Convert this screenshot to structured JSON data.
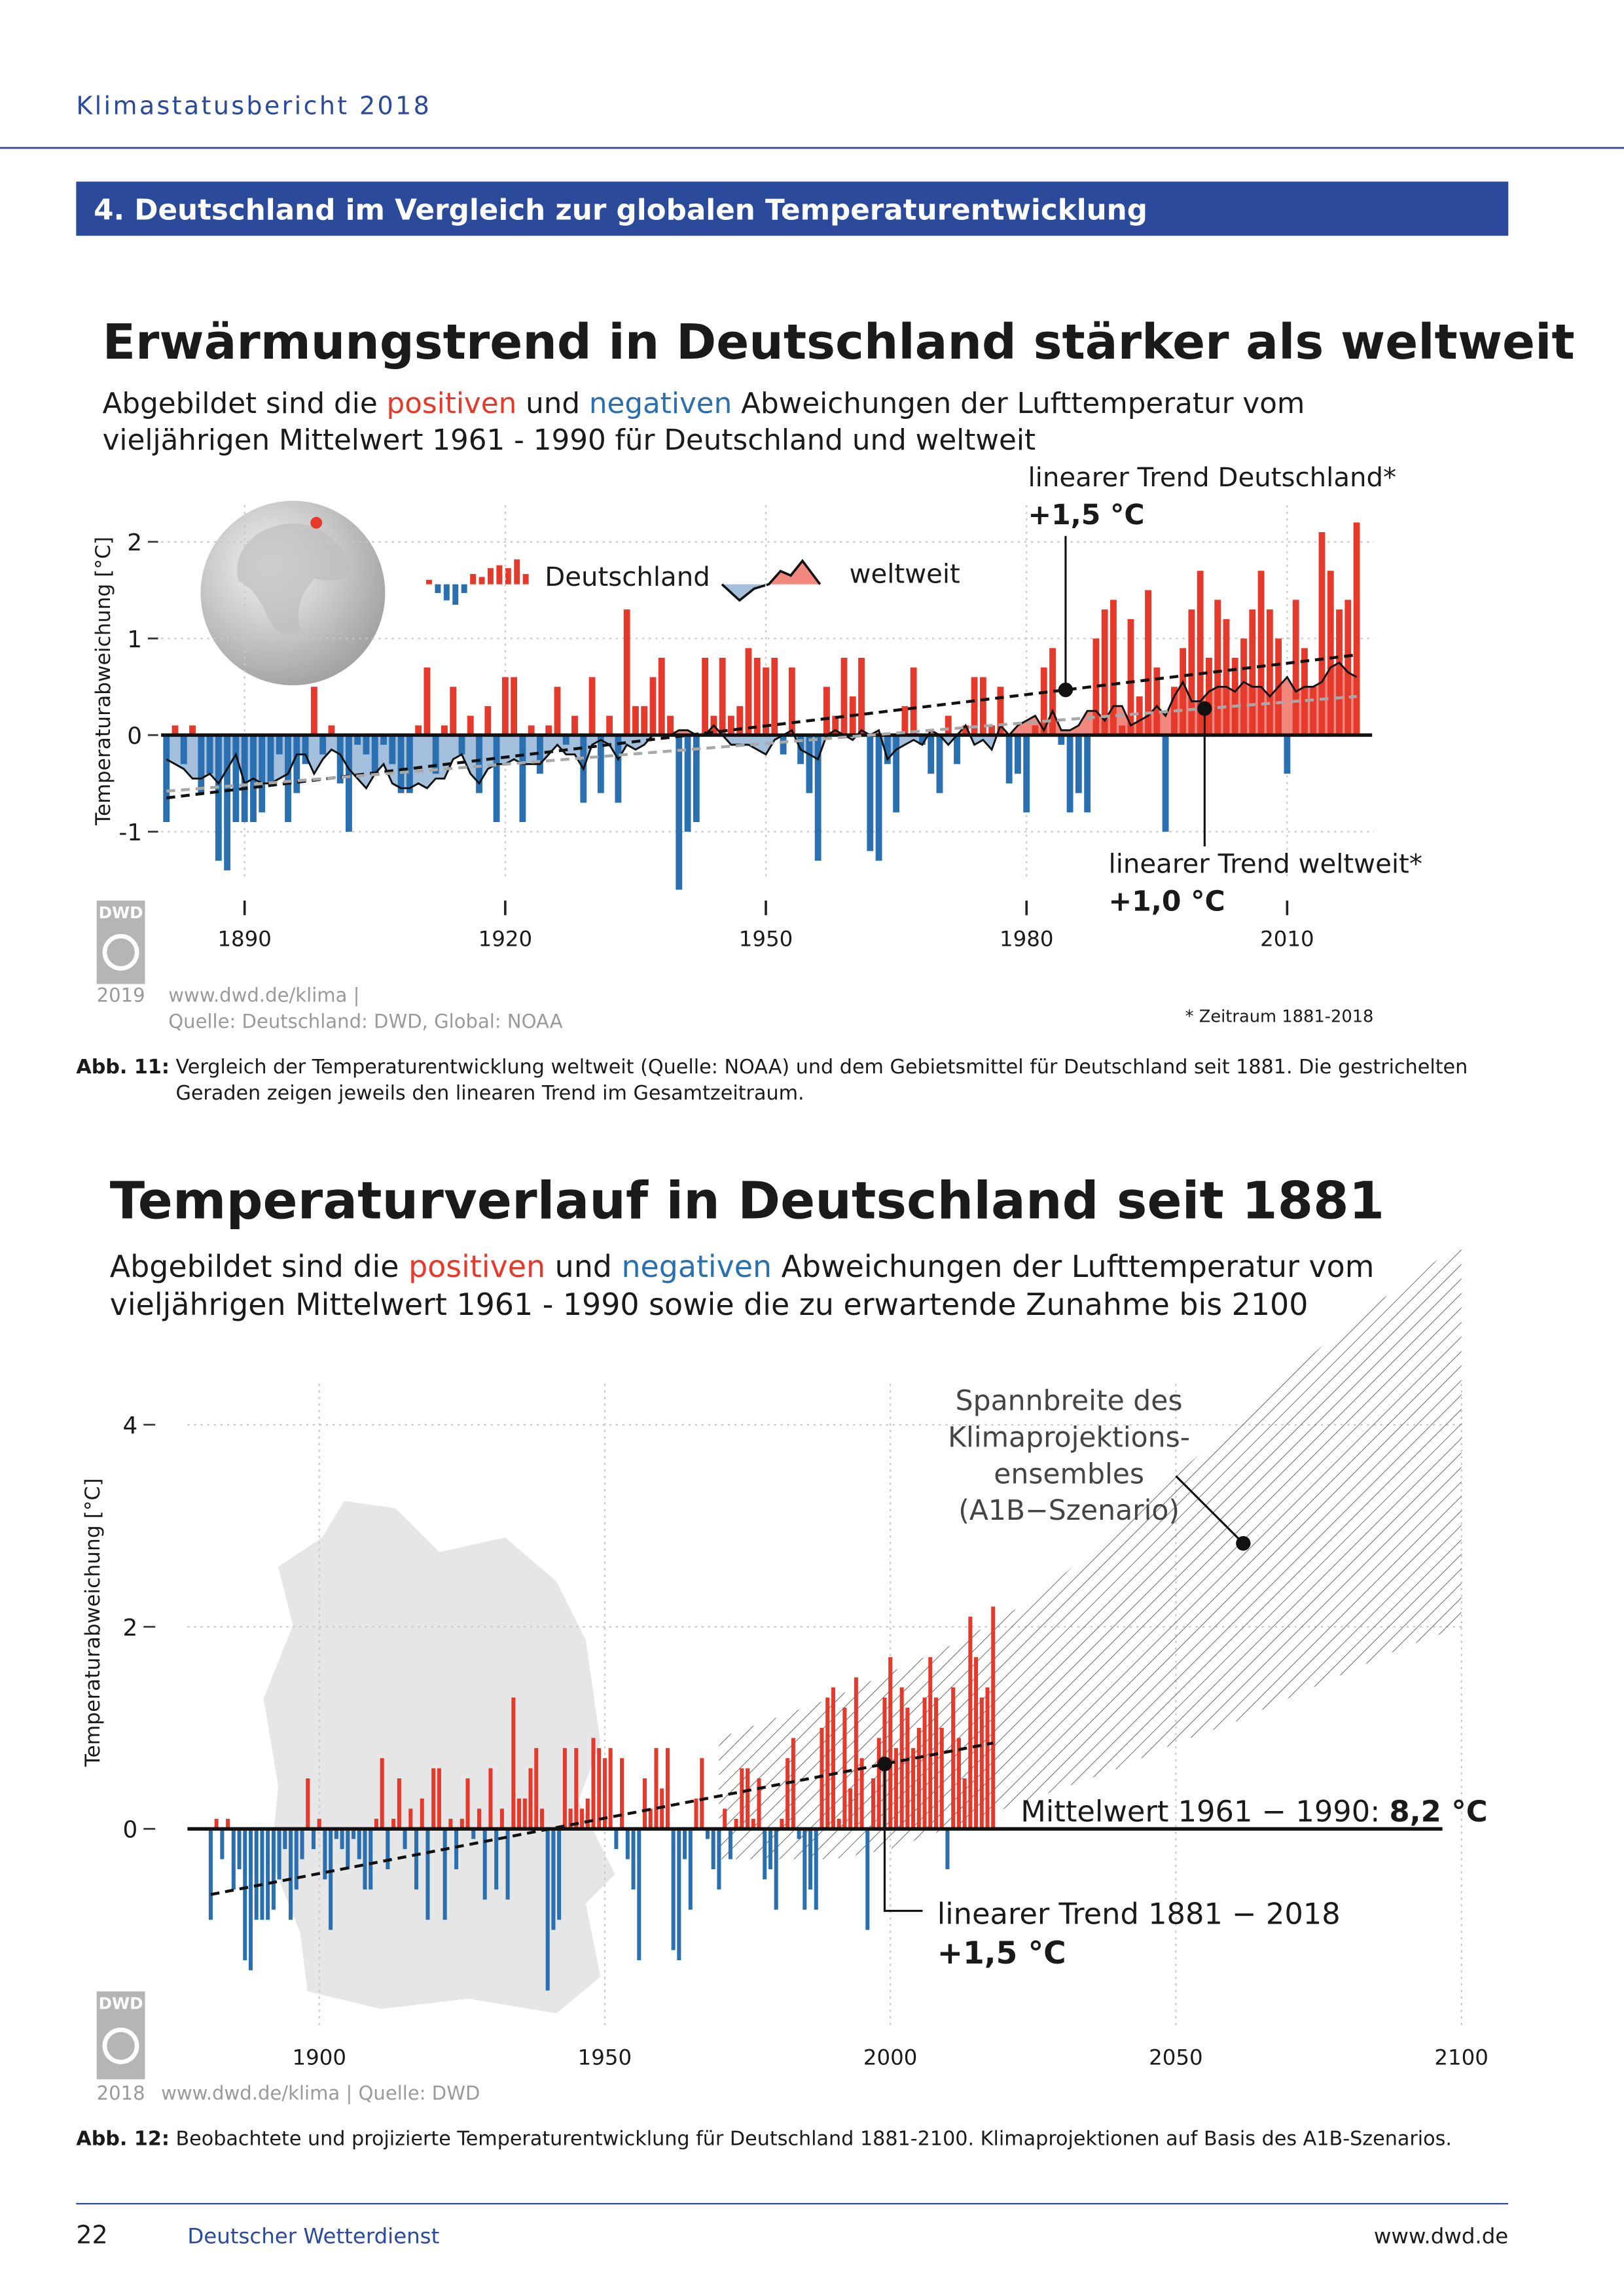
{
  "header": {
    "title": "Klimastatusbericht 2018"
  },
  "section": "4. Deutschland im Vergleich zur globalen Temperaturentwicklung",
  "chart_data": [
    {
      "type": "bar",
      "title": "Erwärmungstrend in Deutschland stärker als weltweit",
      "subtitle": [
        [
          "Abgebildet sind die ",
          "positiven",
          " und ",
          "negativen",
          " Abweichungen der Lufttemperatur vom"
        ],
        [
          "vieljährigen Mittelwert 1961 - 1990 für Deutschland und weltweit"
        ]
      ],
      "y_label": "Temperaturabweichung [°C]",
      "x": [
        1881,
        1882,
        1883,
        1884,
        1885,
        1886,
        1887,
        1888,
        1889,
        1890,
        1891,
        1892,
        1893,
        1894,
        1895,
        1896,
        1897,
        1898,
        1899,
        1900,
        1901,
        1902,
        1903,
        1904,
        1905,
        1906,
        1907,
        1908,
        1909,
        1910,
        1911,
        1912,
        1913,
        1914,
        1915,
        1916,
        1917,
        1918,
        1919,
        1920,
        1921,
        1922,
        1923,
        1924,
        1925,
        1926,
        1927,
        1928,
        1929,
        1930,
        1931,
        1932,
        1933,
        1934,
        1935,
        1936,
        1937,
        1938,
        1939,
        1940,
        1941,
        1942,
        1943,
        1944,
        1945,
        1946,
        1947,
        1948,
        1949,
        1950,
        1951,
        1952,
        1953,
        1954,
        1955,
        1956,
        1957,
        1958,
        1959,
        1960,
        1961,
        1962,
        1963,
        1964,
        1965,
        1966,
        1967,
        1968,
        1969,
        1970,
        1971,
        1972,
        1973,
        1974,
        1975,
        1976,
        1977,
        1978,
        1979,
        1980,
        1981,
        1982,
        1983,
        1984,
        1985,
        1986,
        1987,
        1988,
        1989,
        1990,
        1991,
        1992,
        1993,
        1994,
        1995,
        1996,
        1997,
        1998,
        1999,
        2000,
        2001,
        2002,
        2003,
        2004,
        2005,
        2006,
        2007,
        2008,
        2009,
        2010,
        2011,
        2012,
        2013,
        2014,
        2015,
        2016,
        2017,
        2018
      ],
      "series": [
        {
          "name": "Deutschland",
          "color": "#e5392b",
          "negative_color": "#2a6fb0",
          "values": [
            -0.9,
            0.1,
            -0.3,
            0.1,
            -0.6,
            -0.4,
            -1.3,
            -1.4,
            -0.9,
            -0.9,
            -0.9,
            -0.8,
            -0.5,
            -0.2,
            -0.9,
            -0.6,
            -0.3,
            0.5,
            -0.2,
            0.1,
            -0.5,
            -1.0,
            -0.1,
            -0.2,
            -0.4,
            -0.1,
            -0.3,
            -0.6,
            -0.6,
            0.1,
            0.7,
            -0.4,
            0.1,
            0.5,
            -0.2,
            0.2,
            -0.6,
            0.3,
            -0.9,
            0.6,
            0.6,
            -0.9,
            0.1,
            -0.4,
            0.1,
            0.5,
            -0.1,
            0.2,
            -0.7,
            0.6,
            -0.6,
            0.2,
            -0.7,
            1.3,
            0.3,
            0.3,
            0.6,
            0.8,
            0.2,
            -1.6,
            -1.0,
            -0.9,
            0.8,
            0.2,
            0.8,
            0.2,
            0.3,
            0.9,
            0.8,
            0.7,
            0.8,
            -0.2,
            0.7,
            -0.3,
            -0.6,
            -1.3,
            0.5,
            0.2,
            0.8,
            0.4,
            0.8,
            -1.2,
            -1.3,
            -0.3,
            -0.8,
            0.3,
            0.7,
            -0.1,
            -0.4,
            -0.6,
            0.2,
            -0.3,
            0.1,
            0.6,
            0.6,
            0.1,
            0.5,
            -0.5,
            -0.4,
            -0.8,
            0.1,
            0.7,
            0.9,
            -0.1,
            -0.8,
            -0.6,
            -0.8,
            1.0,
            1.3,
            1.4,
            0.1,
            1.2,
            0.4,
            1.5,
            0.7,
            -1.0,
            0.5,
            0.9,
            1.3,
            1.7,
            0.8,
            1.4,
            1.2,
            0.8,
            1.0,
            1.3,
            1.7,
            1.3,
            1.0,
            -0.4,
            1.4,
            0.9,
            0.5,
            2.1,
            1.7,
            1.3,
            1.4,
            2.2
          ]
        },
        {
          "name": "weltweit",
          "type": "area",
          "color": "#f2887d",
          "negative_color": "#a3bfdc",
          "line_color": "#111111",
          "values": [
            -0.25,
            -0.3,
            -0.35,
            -0.45,
            -0.45,
            -0.4,
            -0.5,
            -0.35,
            -0.2,
            -0.5,
            -0.45,
            -0.5,
            -0.5,
            -0.45,
            -0.4,
            -0.2,
            -0.2,
            -0.4,
            -0.25,
            -0.15,
            -0.2,
            -0.35,
            -0.45,
            -0.55,
            -0.4,
            -0.3,
            -0.5,
            -0.55,
            -0.55,
            -0.5,
            -0.55,
            -0.45,
            -0.45,
            -0.25,
            -0.2,
            -0.4,
            -0.5,
            -0.35,
            -0.3,
            -0.3,
            -0.25,
            -0.3,
            -0.3,
            -0.3,
            -0.2,
            -0.1,
            -0.2,
            -0.2,
            -0.35,
            -0.1,
            -0.05,
            -0.1,
            -0.25,
            -0.1,
            -0.15,
            -0.1,
            0.0,
            0.0,
            0.0,
            0.05,
            0.05,
            0.0,
            0.0,
            0.1,
            0.0,
            -0.1,
            -0.1,
            -0.1,
            -0.15,
            -0.2,
            -0.05,
            0.0,
            0.05,
            -0.15,
            -0.2,
            -0.25,
            0.0,
            0.05,
            0.0,
            -0.05,
            0.05,
            0.0,
            0.05,
            -0.25,
            -0.15,
            -0.1,
            -0.05,
            -0.1,
            0.05,
            0.0,
            -0.1,
            0.0,
            0.1,
            -0.1,
            -0.05,
            -0.15,
            0.1,
            0.0,
            0.1,
            0.15,
            0.2,
            0.05,
            0.25,
            0.05,
            0.05,
            0.1,
            0.25,
            0.25,
            0.15,
            0.3,
            0.3,
            0.1,
            0.15,
            0.2,
            0.3,
            0.2,
            0.4,
            0.55,
            0.35,
            0.35,
            0.45,
            0.5,
            0.5,
            0.45,
            0.55,
            0.5,
            0.5,
            0.4,
            0.5,
            0.6,
            0.45,
            0.5,
            0.5,
            0.55,
            0.7,
            0.75,
            0.65,
            0.6
          ]
        }
      ],
      "xlim": [
        1880,
        2020
      ],
      "xticks": [
        1890,
        1920,
        1950,
        1980,
        2010
      ],
      "ylim": [
        -1.6,
        2.4
      ],
      "yticks": [
        -1,
        0,
        1,
        2
      ],
      "grid": true,
      "trends": [
        {
          "label": "linearer Trend Deutschland*",
          "change": "+1,5 °C",
          "x": [
            1881,
            2018
          ],
          "values": [
            -0.65,
            0.83
          ],
          "color": "#111111"
        },
        {
          "label": "linearer Trend weltweit*",
          "change": "+1,0 °C",
          "x": [
            1881,
            2018
          ],
          "values": [
            -0.58,
            0.4
          ],
          "color": "#a8a8a8"
        }
      ],
      "logo": "DWD",
      "source": {
        "year": "2019",
        "lines": [
          "www.dwd.de/klima |",
          "Quelle: Deutschland: DWD, Global: NOAA"
        ]
      },
      "footnote": "* Zeitraum 1881-2018"
    },
    {
      "type": "bar",
      "title": "Temperaturverlauf in Deutschland seit 1881",
      "subtitle": [
        [
          "Abgebildet sind die ",
          "positiven",
          " und ",
          "negativen",
          " Abweichungen der Lufttemperatur vom"
        ],
        [
          "vieljährigen Mittelwert 1961 - 1990 sowie die zu erwartende Zunahme bis 2100"
        ]
      ],
      "y_label": "Temperaturabweichung [°C]",
      "x": [
        1881,
        1882,
        1883,
        1884,
        1885,
        1886,
        1887,
        1888,
        1889,
        1890,
        1891,
        1892,
        1893,
        1894,
        1895,
        1896,
        1897,
        1898,
        1899,
        1900,
        1901,
        1902,
        1903,
        1904,
        1905,
        1906,
        1907,
        1908,
        1909,
        1910,
        1911,
        1912,
        1913,
        1914,
        1915,
        1916,
        1917,
        1918,
        1919,
        1920,
        1921,
        1922,
        1923,
        1924,
        1925,
        1926,
        1927,
        1928,
        1929,
        1930,
        1931,
        1932,
        1933,
        1934,
        1935,
        1936,
        1937,
        1938,
        1939,
        1940,
        1941,
        1942,
        1943,
        1944,
        1945,
        1946,
        1947,
        1948,
        1949,
        1950,
        1951,
        1952,
        1953,
        1954,
        1955,
        1956,
        1957,
        1958,
        1959,
        1960,
        1961,
        1962,
        1963,
        1964,
        1965,
        1966,
        1967,
        1968,
        1969,
        1970,
        1971,
        1972,
        1973,
        1974,
        1975,
        1976,
        1977,
        1978,
        1979,
        1980,
        1981,
        1982,
        1983,
        1984,
        1985,
        1986,
        1987,
        1988,
        1989,
        1990,
        1991,
        1992,
        1993,
        1994,
        1995,
        1996,
        1997,
        1998,
        1999,
        2000,
        2001,
        2002,
        2003,
        2004,
        2005,
        2006,
        2007,
        2008,
        2009,
        2010,
        2011,
        2012,
        2013,
        2014,
        2015,
        2016,
        2017,
        2018
      ],
      "series": [
        {
          "color": "#e5392b",
          "negative_color": "#2a6fb0",
          "values": [
            -0.9,
            0.1,
            -0.3,
            0.1,
            -0.6,
            -0.4,
            -1.3,
            -1.4,
            -0.9,
            -0.9,
            -0.9,
            -0.8,
            -0.5,
            -0.2,
            -0.9,
            -0.6,
            -0.3,
            0.5,
            -0.2,
            0.1,
            -0.5,
            -1.0,
            -0.1,
            -0.2,
            -0.4,
            -0.1,
            -0.3,
            -0.6,
            -0.6,
            0.1,
            0.7,
            -0.4,
            0.1,
            0.5,
            -0.2,
            0.2,
            -0.6,
            0.3,
            -0.9,
            0.6,
            0.6,
            -0.9,
            0.1,
            -0.4,
            0.1,
            0.5,
            -0.1,
            0.2,
            -0.7,
            0.6,
            -0.6,
            0.2,
            -0.7,
            1.3,
            0.3,
            0.3,
            0.6,
            0.8,
            0.2,
            -1.6,
            -1.0,
            -0.9,
            0.8,
            0.2,
            0.8,
            0.2,
            0.3,
            0.9,
            0.8,
            0.7,
            0.8,
            -0.2,
            0.7,
            -0.3,
            -0.6,
            -1.3,
            0.5,
            0.2,
            0.8,
            0.4,
            0.8,
            -1.2,
            -1.3,
            -0.3,
            -0.8,
            0.3,
            0.7,
            -0.1,
            -0.4,
            -0.6,
            0.2,
            -0.3,
            0.1,
            0.6,
            0.6,
            0.1,
            0.5,
            -0.5,
            -0.4,
            -0.8,
            0.1,
            0.7,
            0.9,
            -0.1,
            -0.8,
            -0.6,
            -0.8,
            1.0,
            1.3,
            1.4,
            0.1,
            1.2,
            0.4,
            1.5,
            0.7,
            -1.0,
            0.5,
            0.9,
            1.3,
            1.7,
            0.8,
            1.4,
            1.2,
            0.8,
            1.0,
            1.3,
            1.7,
            1.3,
            1.0,
            -0.4,
            1.4,
            0.9,
            0.5,
            2.1,
            1.7,
            1.3,
            1.4,
            2.2
          ]
        }
      ],
      "xlim": [
        1877,
        2100
      ],
      "xticks": [
        1900,
        1950,
        2000,
        2050,
        2100
      ],
      "ylim": [
        -1.7,
        6
      ],
      "yticks": [
        0,
        2,
        4
      ],
      "grid": true,
      "ensemble": {
        "label": [
          "Spannbreite des",
          "Klimaprojektions-",
          "ensembles",
          "(A1B−Szenario)"
        ],
        "x": [
          1970,
          1980,
          1990,
          2000,
          2010,
          2020,
          2030,
          2040,
          2050,
          2060,
          2070,
          2080,
          2090,
          2100
        ],
        "lower": [
          -0.3,
          -0.3,
          -0.3,
          -0.2,
          0.0,
          0.2,
          0.4,
          0.6,
          0.85,
          1.05,
          1.3,
          1.55,
          1.8,
          2.0
        ],
        "upper": [
          0.9,
          1.1,
          1.3,
          1.55,
          1.8,
          2.1,
          2.5,
          3.0,
          3.5,
          4.0,
          4.5,
          5.0,
          5.4,
          5.8
        ]
      },
      "mean_label": {
        "text": "Mittelwert 1961 − 1990: ",
        "value": "8,2 °C"
      },
      "trends": [
        {
          "label": "linearer Trend 1881 − 2018",
          "change": "+1,5 °C",
          "x": [
            1881,
            2018
          ],
          "values": [
            -0.65,
            0.85
          ],
          "color": "#111111"
        }
      ],
      "logo": "DWD",
      "source": {
        "year": "2018",
        "lines": [
          "www.dwd.de/klima | Quelle: DWD"
        ]
      }
    }
  ],
  "captions": [
    {
      "label": "Abb. 11:",
      "lines": [
        "Vergleich der Temperaturentwicklung weltweit (Quelle: NOAA) und dem Gebietsmittel für Deutschland seit 1881. Die gestrichelten",
        "Geraden zeigen jeweils den linearen Trend im Gesamtzeitraum."
      ]
    },
    {
      "label": "Abb. 12:",
      "lines": [
        "Beobachtete und projizierte Temperaturentwicklung für Deutschland 1881-2100. Klimaprojektionen auf Basis des A1B-Szenarios."
      ]
    }
  ],
  "footer": {
    "page": 22,
    "publisher": "Deutscher Wetterdienst",
    "url": "www.dwd.de"
  }
}
